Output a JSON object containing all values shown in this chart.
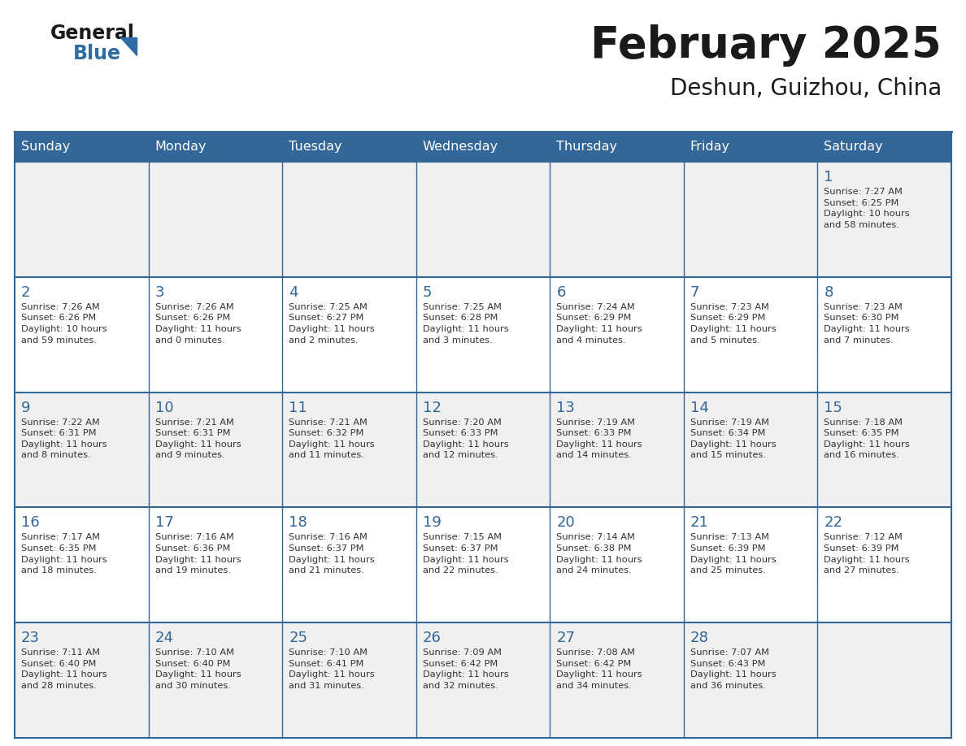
{
  "title": "February 2025",
  "subtitle": "Deshun, Guizhou, China",
  "days_of_week": [
    "Sunday",
    "Monday",
    "Tuesday",
    "Wednesday",
    "Thursday",
    "Friday",
    "Saturday"
  ],
  "header_bg": "#336699",
  "header_text": "#FFFFFF",
  "cell_bg_light": "#F0F0F0",
  "cell_bg_white": "#FFFFFF",
  "border_color": "#336699",
  "day_number_color": "#336699",
  "title_color": "#1A1A1A",
  "cell_text_color": "#333333",
  "logo_general_color": "#1A1A1A",
  "logo_blue_color": "#2E6DA4",
  "logo_triangle_color": "#2E6DA4",
  "calendar_data": [
    [
      null,
      null,
      null,
      null,
      null,
      null,
      {
        "day": "1",
        "sunrise": "7:27 AM",
        "sunset": "6:25 PM",
        "daylight": "10 hours\nand 58 minutes."
      }
    ],
    [
      {
        "day": "2",
        "sunrise": "7:26 AM",
        "sunset": "6:26 PM",
        "daylight": "10 hours\nand 59 minutes."
      },
      {
        "day": "3",
        "sunrise": "7:26 AM",
        "sunset": "6:26 PM",
        "daylight": "11 hours\nand 0 minutes."
      },
      {
        "day": "4",
        "sunrise": "7:25 AM",
        "sunset": "6:27 PM",
        "daylight": "11 hours\nand 2 minutes."
      },
      {
        "day": "5",
        "sunrise": "7:25 AM",
        "sunset": "6:28 PM",
        "daylight": "11 hours\nand 3 minutes."
      },
      {
        "day": "6",
        "sunrise": "7:24 AM",
        "sunset": "6:29 PM",
        "daylight": "11 hours\nand 4 minutes."
      },
      {
        "day": "7",
        "sunrise": "7:23 AM",
        "sunset": "6:29 PM",
        "daylight": "11 hours\nand 5 minutes."
      },
      {
        "day": "8",
        "sunrise": "7:23 AM",
        "sunset": "6:30 PM",
        "daylight": "11 hours\nand 7 minutes."
      }
    ],
    [
      {
        "day": "9",
        "sunrise": "7:22 AM",
        "sunset": "6:31 PM",
        "daylight": "11 hours\nand 8 minutes."
      },
      {
        "day": "10",
        "sunrise": "7:21 AM",
        "sunset": "6:31 PM",
        "daylight": "11 hours\nand 9 minutes."
      },
      {
        "day": "11",
        "sunrise": "7:21 AM",
        "sunset": "6:32 PM",
        "daylight": "11 hours\nand 11 minutes."
      },
      {
        "day": "12",
        "sunrise": "7:20 AM",
        "sunset": "6:33 PM",
        "daylight": "11 hours\nand 12 minutes."
      },
      {
        "day": "13",
        "sunrise": "7:19 AM",
        "sunset": "6:33 PM",
        "daylight": "11 hours\nand 14 minutes."
      },
      {
        "day": "14",
        "sunrise": "7:19 AM",
        "sunset": "6:34 PM",
        "daylight": "11 hours\nand 15 minutes."
      },
      {
        "day": "15",
        "sunrise": "7:18 AM",
        "sunset": "6:35 PM",
        "daylight": "11 hours\nand 16 minutes."
      }
    ],
    [
      {
        "day": "16",
        "sunrise": "7:17 AM",
        "sunset": "6:35 PM",
        "daylight": "11 hours\nand 18 minutes."
      },
      {
        "day": "17",
        "sunrise": "7:16 AM",
        "sunset": "6:36 PM",
        "daylight": "11 hours\nand 19 minutes."
      },
      {
        "day": "18",
        "sunrise": "7:16 AM",
        "sunset": "6:37 PM",
        "daylight": "11 hours\nand 21 minutes."
      },
      {
        "day": "19",
        "sunrise": "7:15 AM",
        "sunset": "6:37 PM",
        "daylight": "11 hours\nand 22 minutes."
      },
      {
        "day": "20",
        "sunrise": "7:14 AM",
        "sunset": "6:38 PM",
        "daylight": "11 hours\nand 24 minutes."
      },
      {
        "day": "21",
        "sunrise": "7:13 AM",
        "sunset": "6:39 PM",
        "daylight": "11 hours\nand 25 minutes."
      },
      {
        "day": "22",
        "sunrise": "7:12 AM",
        "sunset": "6:39 PM",
        "daylight": "11 hours\nand 27 minutes."
      }
    ],
    [
      {
        "day": "23",
        "sunrise": "7:11 AM",
        "sunset": "6:40 PM",
        "daylight": "11 hours\nand 28 minutes."
      },
      {
        "day": "24",
        "sunrise": "7:10 AM",
        "sunset": "6:40 PM",
        "daylight": "11 hours\nand 30 minutes."
      },
      {
        "day": "25",
        "sunrise": "7:10 AM",
        "sunset": "6:41 PM",
        "daylight": "11 hours\nand 31 minutes."
      },
      {
        "day": "26",
        "sunrise": "7:09 AM",
        "sunset": "6:42 PM",
        "daylight": "11 hours\nand 32 minutes."
      },
      {
        "day": "27",
        "sunrise": "7:08 AM",
        "sunset": "6:42 PM",
        "daylight": "11 hours\nand 34 minutes."
      },
      {
        "day": "28",
        "sunrise": "7:07 AM",
        "sunset": "6:43 PM",
        "daylight": "11 hours\nand 36 minutes."
      },
      null
    ]
  ]
}
